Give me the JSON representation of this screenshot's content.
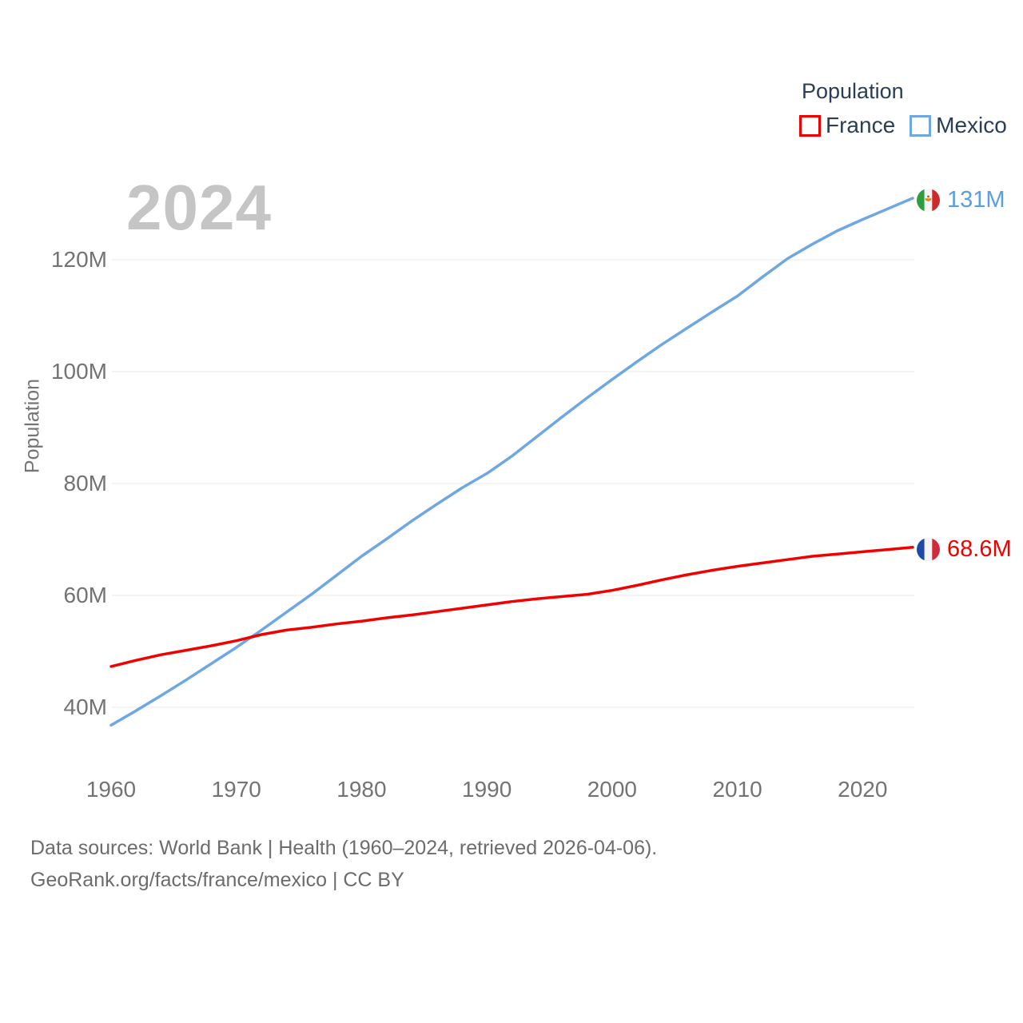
{
  "page": {
    "watermark_year": "2024"
  },
  "legend": {
    "title": "Population",
    "items": [
      {
        "label": "France",
        "color": "#f20000"
      },
      {
        "label": "Mexico",
        "color": "#6fa7e3"
      }
    ]
  },
  "end_labels": {
    "mexico": {
      "country": "Mexico",
      "label": "131M",
      "color": "#5b9fe0"
    },
    "france": {
      "country": "France",
      "label": "68.6M",
      "color": "#f20000"
    }
  },
  "chart_data": {
    "type": "line",
    "title": "",
    "ylabel": "Population",
    "xlabel": "",
    "grid": "horizontal",
    "legend_position": "top-right",
    "xlim": [
      1960,
      2024
    ],
    "ylim": [
      33,
      134
    ],
    "current_year_label": "2024",
    "yticks": [
      {
        "value": 40,
        "label": "40M"
      },
      {
        "value": 60,
        "label": "60M"
      },
      {
        "value": 80,
        "label": "80M"
      },
      {
        "value": 100,
        "label": "100M"
      },
      {
        "value": 120,
        "label": "120M"
      }
    ],
    "xticks": [
      {
        "value": 1960,
        "label": "1960"
      },
      {
        "value": 1970,
        "label": "1970"
      },
      {
        "value": 1980,
        "label": "1980"
      },
      {
        "value": 1990,
        "label": "1990"
      },
      {
        "value": 2000,
        "label": "2000"
      },
      {
        "value": 2010,
        "label": "2010"
      },
      {
        "value": 2020,
        "label": "2020"
      }
    ],
    "x": [
      1960,
      1962,
      1964,
      1966,
      1968,
      1970,
      1972,
      1974,
      1976,
      1978,
      1980,
      1982,
      1984,
      1986,
      1988,
      1990,
      1992,
      1994,
      1996,
      1998,
      2000,
      2002,
      2004,
      2006,
      2008,
      2010,
      2012,
      2014,
      2016,
      2018,
      2020,
      2022,
      2024
    ],
    "series": [
      {
        "name": "France",
        "color": "#f20000",
        "end_value_label": "68.6M",
        "values": [
          47.3,
          48.4,
          49.4,
          50.2,
          51.0,
          51.9,
          53.0,
          53.8,
          54.3,
          54.9,
          55.4,
          56.0,
          56.5,
          57.1,
          57.7,
          58.3,
          58.9,
          59.4,
          59.8,
          60.2,
          60.9,
          61.8,
          62.8,
          63.7,
          64.5,
          65.2,
          65.8,
          66.4,
          67.0,
          67.4,
          67.8,
          68.2,
          68.6
        ]
      },
      {
        "name": "Mexico",
        "color": "#6fa7e3",
        "end_value_label": "131M",
        "values": [
          36.8,
          39.4,
          42.1,
          44.9,
          47.8,
          50.7,
          53.8,
          57.0,
          60.2,
          63.6,
          67.0,
          70.1,
          73.3,
          76.3,
          79.2,
          81.8,
          84.9,
          88.4,
          91.9,
          95.3,
          98.6,
          101.8,
          104.9,
          107.8,
          110.7,
          113.5,
          116.9,
          120.2,
          122.8,
          125.2,
          127.2,
          129.1,
          131.0
        ]
      }
    ]
  },
  "flags": {
    "mexico": {
      "green": "#2f9e41",
      "white": "#f5f5f5",
      "red": "#cd2b2b",
      "emblem": "#d8862b",
      "emblem_dark": "#a0622a"
    },
    "france": {
      "blue": "#1e49a8",
      "white": "#f5f5f5",
      "red": "#cf2b38"
    }
  },
  "footer": {
    "line1": "Data sources: World Bank | Health (1960–2024, retrieved 2026-04-06).",
    "line2": "GeoRank.org/facts/france/mexico | CC BY"
  }
}
